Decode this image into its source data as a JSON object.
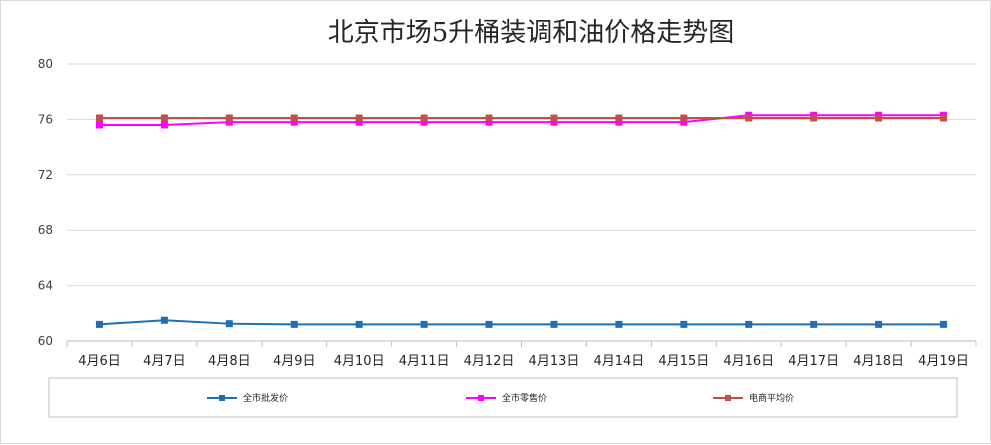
{
  "chart_data": {
    "type": "line",
    "title": "北京市场5升桶装调和油价格走势图",
    "categories": [
      "4月6日",
      "4月7日",
      "4月8日",
      "4月9日",
      "4月10日",
      "4月11日",
      "4月12日",
      "4月13日",
      "4月14日",
      "4月15日",
      "4月16日",
      "4月17日",
      "4月18日",
      "4月19日"
    ],
    "ylim": [
      60,
      80
    ],
    "yticks": [
      "60",
      "64",
      "68",
      "72",
      "76",
      "80"
    ],
    "grid": true,
    "legend_position": "bottom",
    "series": [
      {
        "name": "全市批发价",
        "color": "#1f6fb4",
        "values": [
          61.2,
          61.5,
          61.25,
          61.2,
          61.2,
          61.2,
          61.2,
          61.2,
          61.2,
          61.2,
          61.2,
          61.2,
          61.2,
          61.2
        ]
      },
      {
        "name": "全市零售价",
        "color": "#ff00ff",
        "values": [
          75.6,
          75.6,
          75.8,
          75.8,
          75.8,
          75.8,
          75.8,
          75.8,
          75.8,
          75.8,
          76.3,
          76.3,
          76.3,
          76.3
        ]
      },
      {
        "name": "电商平均价",
        "color": "#c0504d",
        "values": [
          76.1,
          76.1,
          76.1,
          76.1,
          76.1,
          76.1,
          76.1,
          76.1,
          76.1,
          76.1,
          76.1,
          76.1,
          76.1,
          76.1
        ]
      }
    ]
  }
}
